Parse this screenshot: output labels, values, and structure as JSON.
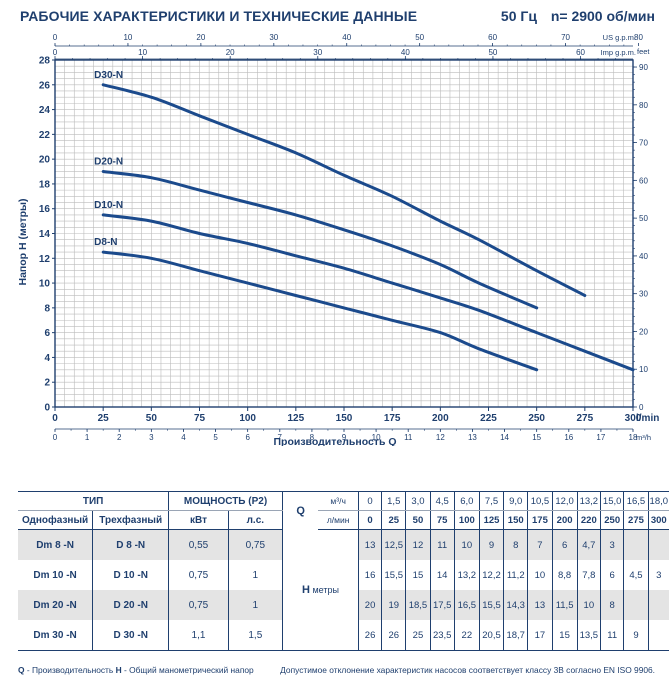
{
  "header": {
    "title": "РАБОЧИЕ ХАРАКТЕРИСТИКИ И ТЕХНИЧЕСКИЕ ДАННЫЕ",
    "frequency": "50 Гц",
    "speed": "n= 2900 об/мин"
  },
  "chart_data": {
    "type": "line",
    "xlabel": "Производительность Q",
    "x_unit": "l/min",
    "ylabel": "Напор H (метры)",
    "xlim": [
      0,
      300
    ],
    "ylim": [
      0,
      28
    ],
    "x_ticks": [
      0,
      25,
      50,
      75,
      100,
      125,
      150,
      175,
      200,
      225,
      250,
      275,
      300
    ],
    "y_ticks": [
      0,
      2,
      4,
      6,
      8,
      10,
      12,
      14,
      16,
      18,
      20,
      22,
      24,
      26,
      28
    ],
    "secondary_axes": {
      "top_us": {
        "label": "US g.p.m.",
        "ticks": [
          0,
          10,
          20,
          30,
          40,
          50,
          60,
          70,
          80
        ]
      },
      "top_imp": {
        "label": "Imp g.p.m.",
        "ticks": [
          0,
          10,
          20,
          30,
          40,
          50,
          60
        ]
      },
      "bottom_m3h": {
        "label": "m³/h",
        "ticks": [
          0,
          1,
          2,
          3,
          4,
          5,
          6,
          7,
          8,
          9,
          10,
          11,
          12,
          13,
          14,
          15,
          16,
          17,
          18
        ]
      },
      "right_feet": {
        "label": "feet",
        "ticks": [
          0,
          10,
          20,
          30,
          40,
          50,
          60,
          70,
          80,
          90
        ]
      }
    },
    "grid": true,
    "series": [
      {
        "name": "D30-N",
        "x": [
          25,
          50,
          75,
          100,
          125,
          150,
          175,
          200,
          220,
          250,
          275
        ],
        "y": [
          26,
          25,
          23.5,
          22,
          20.5,
          18.7,
          17,
          15,
          13.5,
          11,
          9
        ]
      },
      {
        "name": "D20-N",
        "x": [
          25,
          50,
          75,
          100,
          125,
          150,
          175,
          200,
          220,
          250
        ],
        "y": [
          19,
          18.5,
          17.5,
          16.5,
          15.5,
          14.3,
          13,
          11.5,
          10,
          8
        ]
      },
      {
        "name": "D10-N",
        "x": [
          25,
          50,
          75,
          100,
          125,
          150,
          175,
          200,
          220,
          250,
          275,
          300
        ],
        "y": [
          15.5,
          15,
          14,
          13.2,
          12.2,
          11.2,
          10,
          8.8,
          7.8,
          6,
          4.5,
          3
        ]
      },
      {
        "name": "D8-N",
        "x": [
          25,
          50,
          75,
          100,
          125,
          150,
          175,
          200,
          220,
          250
        ],
        "y": [
          12.5,
          12,
          11,
          10,
          9,
          8,
          7,
          6,
          4.7,
          3
        ]
      }
    ]
  },
  "table": {
    "type_header": "ТИП",
    "power_header": "МОЩНОСТЬ (P2)",
    "col_single": "Однофазный",
    "col_three": "Трехфазный",
    "col_kw": "кВт",
    "col_hp": "л.с.",
    "q_label": "Q",
    "q_unit_m3h": "м³/ч",
    "q_unit_lmin": "л/мин",
    "h_label": "H",
    "h_unit": "метры",
    "q_m3h": [
      "0",
      "1,5",
      "3,0",
      "4,5",
      "6,0",
      "7,5",
      "9,0",
      "10,5",
      "12,0",
      "13,2",
      "15,0",
      "16,5",
      "18,0"
    ],
    "q_lmin": [
      "0",
      "25",
      "50",
      "75",
      "100",
      "125",
      "150",
      "175",
      "200",
      "220",
      "250",
      "275",
      "300"
    ],
    "rows": [
      {
        "single": "Dm 8  -N",
        "three": "D 8  -N",
        "kw": "0,55",
        "hp": "0,75",
        "h": [
          "13",
          "12,5",
          "12",
          "11",
          "10",
          "9",
          "8",
          "7",
          "6",
          "4,7",
          "3",
          "",
          ""
        ]
      },
      {
        "single": "Dm 10 -N",
        "three": "D 10 -N",
        "kw": "0,75",
        "hp": "1",
        "h": [
          "16",
          "15,5",
          "15",
          "14",
          "13,2",
          "12,2",
          "11,2",
          "10",
          "8,8",
          "7,8",
          "6",
          "4,5",
          "3"
        ]
      },
      {
        "single": "Dm 20 -N",
        "three": "D 20 -N",
        "kw": "0,75",
        "hp": "1",
        "h": [
          "20",
          "19",
          "18,5",
          "17,5",
          "16,5",
          "15,5",
          "14,3",
          "13",
          "11,5",
          "10",
          "8",
          "",
          ""
        ]
      },
      {
        "single": "Dm 30 -N",
        "three": "D 30 -N",
        "kw": "1,1",
        "hp": "1,5",
        "h": [
          "26",
          "26",
          "25",
          "23,5",
          "22",
          "20,5",
          "18,7",
          "17",
          "15",
          "13,5",
          "11",
          "9",
          ""
        ]
      }
    ]
  },
  "footer": {
    "q_key": "Q",
    "q_desc": " - Производительность ",
    "h_key": "H",
    "h_desc": " - Общий манометрический напор",
    "note": "Допустимое отклонение характеристик насосов соответствует классу 3B согласно EN ISO 9906."
  },
  "colors": {
    "text": "#1f3f6e",
    "curve": "#1b4a8c",
    "grid": "#bcbcbc",
    "shade": "#e4e4e4"
  }
}
